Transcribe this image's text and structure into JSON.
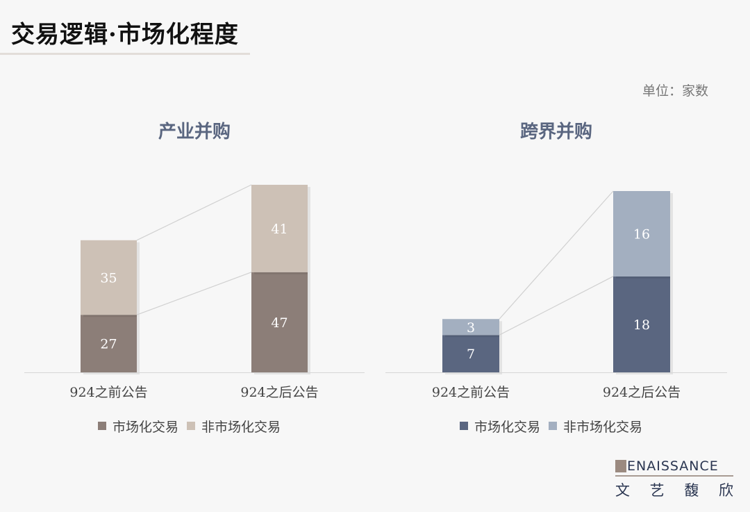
{
  "title": "交易逻辑·市场化程度",
  "unit": "单位：家数",
  "logo": {
    "en": "ENAISSANCE",
    "cn": [
      "文",
      "艺",
      "馥",
      "欣"
    ]
  },
  "chart_data": [
    {
      "type": "bar",
      "stacked": true,
      "title": "产业并购",
      "categories": [
        "924之前公告",
        "924之后公告"
      ],
      "series": [
        {
          "name": "市场化交易",
          "values": [
            27,
            47
          ],
          "color": "#8c7e78"
        },
        {
          "name": "非市场化交易",
          "values": [
            35,
            41
          ],
          "color": "#cdc1b6"
        }
      ],
      "legend": "bottom",
      "grid": false
    },
    {
      "type": "bar",
      "stacked": true,
      "title": "跨界并购",
      "categories": [
        "924之前公告",
        "924之后公告"
      ],
      "series": [
        {
          "name": "市场化交易",
          "values": [
            7,
            18
          ],
          "color": "#5a6680"
        },
        {
          "name": "非市场化交易",
          "values": [
            3,
            16
          ],
          "color": "#a3afc0"
        }
      ],
      "legend": "bottom",
      "grid": false
    }
  ]
}
